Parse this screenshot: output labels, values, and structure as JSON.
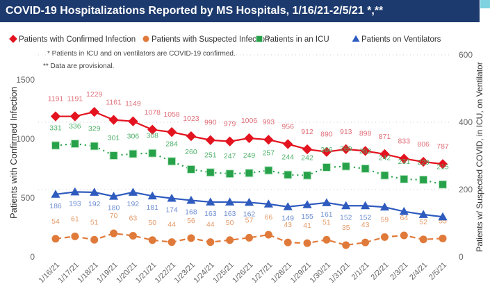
{
  "header": {
    "title": "COVID-19 Hospitalizations Reported by MS Hospitals, 1/16/21-2/5/21 *,**"
  },
  "chart_data": {
    "type": "line",
    "title": "COVID-19 Hospitalizations Reported by MS Hospitals, 1/16/21-2/5/21 *,**",
    "notes": [
      "* Patients in ICU and on ventilators are COVID-19 confirmed.",
      "** Data are provisional."
    ],
    "ylabel": "Patients with Confirmed Infection",
    "y2label": "Patients w/ Suspected COVID, in ICU, on Ventilator",
    "yticks": [
      0,
      500,
      1000,
      1500
    ],
    "ylim": [
      0,
      1712
    ],
    "y2ticks": [
      0,
      200,
      400,
      600
    ],
    "y2lim": [
      0,
      600
    ],
    "x": [
      "1/16/21",
      "1/17/21",
      "1/18/21",
      "1/19/21",
      "1/20/21",
      "1/21/21",
      "1/22/21",
      "1/23/21",
      "1/24/21",
      "1/25/21",
      "1/26/21",
      "1/27/21",
      "1/28/21",
      "1/29/21",
      "1/30/21",
      "1/31/21",
      "2/1/21",
      "2/2/21",
      "2/3/21",
      "2/4/21",
      "2/5/21"
    ],
    "series": [
      {
        "name": "Patients with Confirmed Infection",
        "axis": "left",
        "color": "#e3131f",
        "marker": "diamond",
        "dash": "",
        "label_color": "#e0707a",
        "labelpos": "above",
        "values": [
          1191,
          1191,
          1229,
          1161,
          1149,
          1078,
          1058,
          1023,
          990,
          979,
          1006,
          993,
          956,
          912,
          890,
          913,
          898,
          871,
          833,
          806,
          787
        ]
      },
      {
        "name": "Patients with Suspected Infection",
        "axis": "right",
        "color": "#e07a3a",
        "marker": "circle",
        "dash": "8,5",
        "label_color": "#e39a6a",
        "labelpos": "above",
        "values": [
          54,
          61,
          51,
          70,
          63,
          50,
          44,
          56,
          44,
          50,
          57,
          66,
          43,
          41,
          51,
          35,
          43,
          59,
          64,
          52,
          55
        ]
      },
      {
        "name": "Patients in an ICU",
        "axis": "right",
        "color": "#27a24a",
        "marker": "square",
        "dash": "2,5",
        "label_color": "#4fb06a",
        "labelpos": "above",
        "values": [
          331,
          336,
          329,
          301,
          306,
          308,
          284,
          260,
          251,
          247,
          249,
          257,
          244,
          242,
          266,
          269,
          262,
          242,
          231,
          229,
          215
        ]
      },
      {
        "name": "Patients on Ventilators",
        "axis": "right",
        "color": "#2f5bbf",
        "marker": "triangle",
        "dash": "",
        "label_color": "#6f8fd0",
        "labelpos": "below",
        "values": [
          186,
          193,
          192,
          180,
          192,
          181,
          174,
          168,
          163,
          163,
          162,
          157,
          149,
          155,
          161,
          152,
          152,
          148,
          135,
          126,
          119
        ],
        "labels": [
          "186",
          "193",
          "192",
          "180",
          "192",
          "181",
          "174",
          "168",
          "163",
          "163",
          "162",
          "",
          "149",
          "155",
          "161",
          "152",
          "152",
          "",
          "",
          "",
          ""
        ]
      }
    ],
    "legend": "top"
  }
}
